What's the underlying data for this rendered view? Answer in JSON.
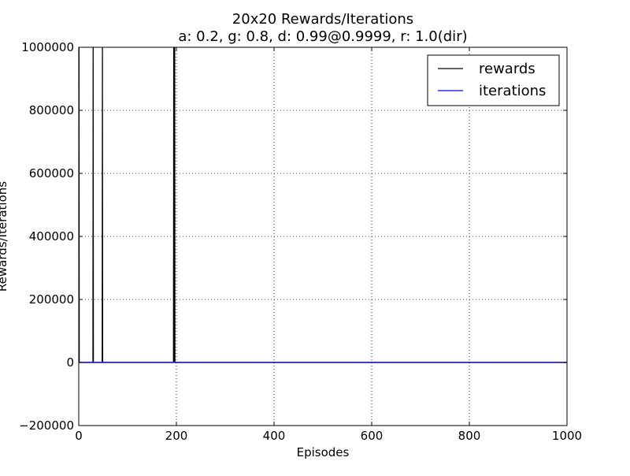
{
  "chart_data": {
    "type": "line",
    "title": "20x20 Rewards/Iterations",
    "subtitle": "a: 0.2, g: 0.8, d: 0.99@0.9999, r: 1.0(dir)",
    "xlabel": "Episodes",
    "ylabel": "Rewards/Iterations",
    "xlim": [
      0,
      1000
    ],
    "ylim": [
      -200000,
      1000000
    ],
    "x_ticks": [
      0,
      200,
      400,
      600,
      800,
      1000
    ],
    "y_ticks": [
      -200000,
      0,
      200000,
      400000,
      600000,
      800000,
      1000000
    ],
    "x_tick_labels": [
      "0",
      "200",
      "400",
      "600",
      "800",
      "1000"
    ],
    "y_tick_labels": [
      "−200000",
      "0",
      "200000",
      "400000",
      "600000",
      "800000",
      "1000000"
    ],
    "grid": true,
    "legend_position": "top-right",
    "series": [
      {
        "name": "rewards",
        "color": "#000000",
        "x": [
          0,
          0.5,
          1,
          29,
          29.5,
          30,
          48,
          48.5,
          49,
          194,
          194.5,
          196,
          196.5,
          197,
          1000
        ],
        "y": [
          0,
          1000000,
          0,
          0,
          1000000,
          0,
          0,
          1000000,
          0,
          0,
          1000000,
          0,
          1000000,
          0,
          0
        ]
      },
      {
        "name": "iterations",
        "color": "#0000ff",
        "x": [
          0,
          1000
        ],
        "y": [
          500,
          500
        ]
      }
    ]
  }
}
